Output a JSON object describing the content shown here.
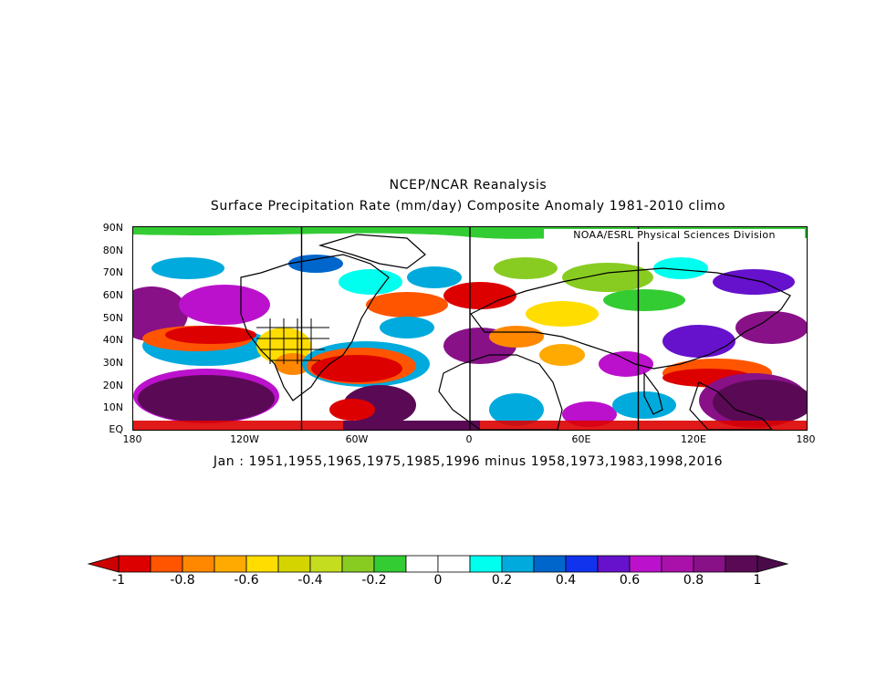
{
  "title": "NCEP/NCAR Reanalysis",
  "subtitle": "Surface Precipitation Rate (mm/day) Composite Anomaly 1981-2010 climo",
  "credit": "NOAA/ESRL Physical Sciences Division",
  "caption": "Jan : 1951,1955,1965,1975,1985,1996 minus 1958,1973,1983,1998,2016",
  "lat_labels": [
    "90N",
    "80N",
    "70N",
    "60N",
    "50N",
    "40N",
    "30N",
    "20N",
    "10N",
    "EQ"
  ],
  "lon_labels": [
    "180",
    "120W",
    "60W",
    "0",
    "60E",
    "120E",
    "180"
  ],
  "colorbar": {
    "labels": [
      "-1",
      "-0.8",
      "-0.6",
      "-0.4",
      "-0.2",
      "0",
      "0.2",
      "0.4",
      "0.6",
      "0.8",
      "1"
    ],
    "colors": [
      "#dd0000",
      "#ff5500",
      "#ff8800",
      "#ffaa00",
      "#ffdd00",
      "#d4d400",
      "#c4dd1f",
      "#88cc22",
      "#33cc33",
      "#ffffff",
      "#ffffff",
      "#00ffee",
      "#00aadd",
      "#0066cc",
      "#1133ee",
      "#6611cc",
      "#bb11cc",
      "#aa11aa",
      "#881188",
      "#5a0a55"
    ],
    "under_color": "#cc0000",
    "over_color": "#4a0a4a"
  },
  "map": {
    "lon_range": [
      -180,
      180
    ],
    "lat_range": [
      0,
      90
    ],
    "vertical_reference_lines": [
      -90,
      0,
      90
    ]
  }
}
